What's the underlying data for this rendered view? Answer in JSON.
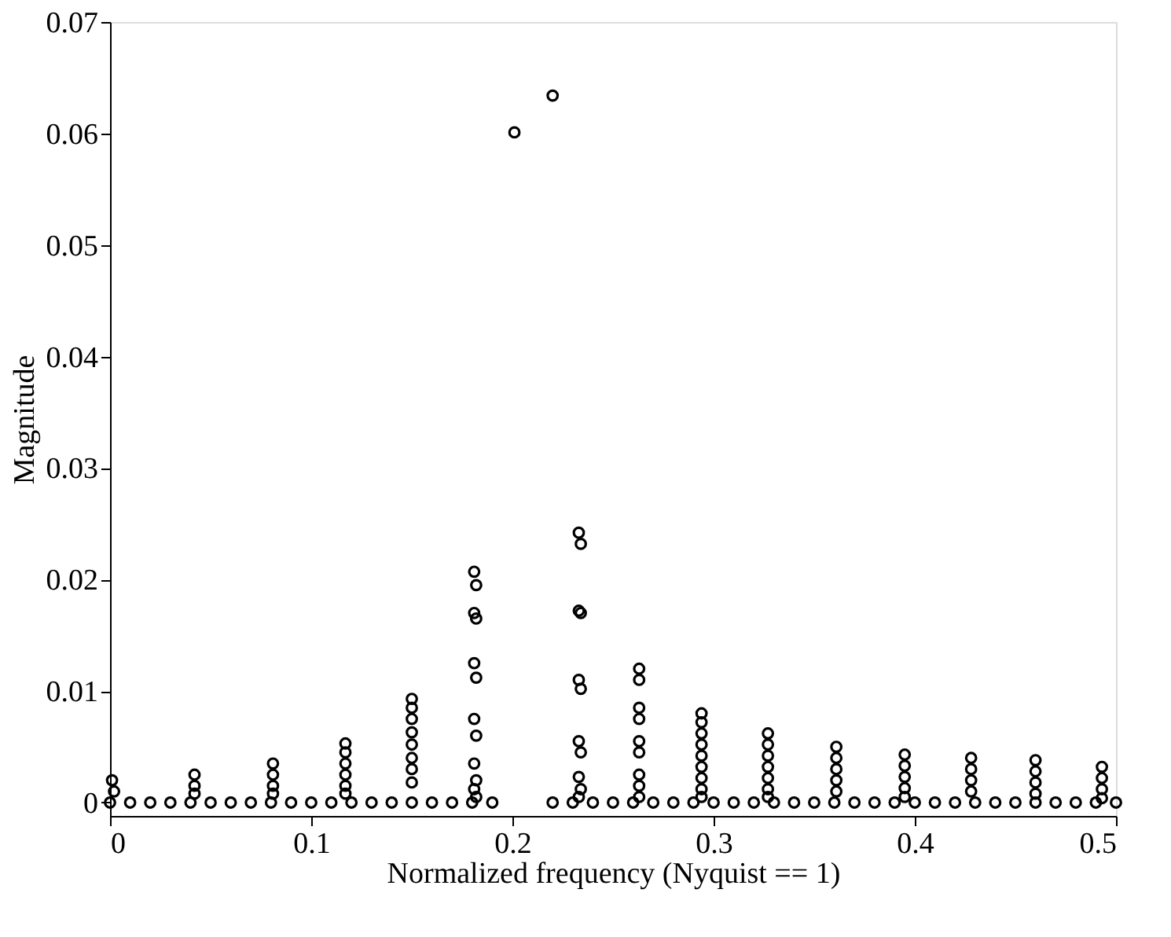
{
  "chart_data": {
    "type": "scatter",
    "xlabel": "Normalized frequency (Nyquist == 1)",
    "ylabel": "Magnitude",
    "xlim": [
      0,
      0.5
    ],
    "xticks": [
      0,
      0.1,
      0.2,
      0.3,
      0.4,
      0.5
    ],
    "ylim": [
      -0.0012,
      0.07
    ],
    "yticks": [
      0,
      0.01,
      0.02,
      0.03,
      0.04,
      0.05,
      0.06,
      0.07
    ],
    "grid": false,
    "legend": false,
    "marker": "circle",
    "series": [
      {
        "color": "#000000",
        "x": [
          0,
          0.01,
          0.02,
          0.03,
          0.04,
          0.05,
          0.06,
          0.07,
          0.08,
          0.09,
          0.1,
          0.11,
          0.12,
          0.13,
          0.14,
          0.15,
          0.16,
          0.17,
          0.18,
          0.19,
          0.22,
          0.23,
          0.24,
          0.25,
          0.26,
          0.27,
          0.28,
          0.29,
          0.3,
          0.31,
          0.32,
          0.33,
          0.34,
          0.35,
          0.36,
          0.37,
          0.38,
          0.39,
          0.4,
          0.41,
          0.42,
          0.43,
          0.44,
          0.45,
          0.46,
          0.47,
          0.48,
          0.49,
          0.5
        ],
        "values": [
          0,
          0,
          0,
          0,
          0,
          0,
          0,
          0,
          0,
          0,
          0,
          0,
          0,
          0,
          0,
          0,
          0,
          0,
          0,
          0,
          0,
          0,
          0,
          0,
          0,
          0,
          0,
          0,
          0,
          0,
          0,
          0,
          0,
          0,
          0,
          0,
          0,
          0,
          0,
          0,
          0,
          0,
          0,
          0,
          0,
          0,
          0,
          0,
          0
        ]
      },
      {
        "color": "#000000",
        "x": [
          0.001,
          0.002,
          0.042,
          0.042,
          0.042,
          0.081,
          0.081,
          0.081,
          0.081
        ],
        "values": [
          0.002,
          0.001,
          0.0025,
          0.0015,
          0.0008,
          0.0035,
          0.0025,
          0.0015,
          0.0008
        ]
      },
      {
        "color": "#000000",
        "x": [
          0.117,
          0.117,
          0.117,
          0.117,
          0.117,
          0.117,
          0.15,
          0.15,
          0.15,
          0.15,
          0.15,
          0.15,
          0.15,
          0.15
        ],
        "values": [
          0.0053,
          0.0045,
          0.0035,
          0.0025,
          0.0015,
          0.0008,
          0.0093,
          0.0085,
          0.0075,
          0.0063,
          0.0052,
          0.004,
          0.003,
          0.0018
        ]
      },
      {
        "color": "#000000",
        "x": [
          0.181,
          0.182,
          0.181,
          0.182,
          0.181,
          0.182,
          0.181,
          0.182,
          0.181,
          0.182,
          0.181,
          0.182
        ],
        "values": [
          0.0207,
          0.0195,
          0.017,
          0.0165,
          0.0125,
          0.0112,
          0.0075,
          0.006,
          0.0035,
          0.002,
          0.0012,
          0.0005
        ]
      },
      {
        "color": "#000000",
        "x": [
          0.201,
          0.22
        ],
        "values": [
          0.0601,
          0.0634
        ]
      },
      {
        "color": "#000000",
        "x": [
          0.233,
          0.234,
          0.233,
          0.234,
          0.233,
          0.234,
          0.233,
          0.234,
          0.233,
          0.234,
          0.233
        ],
        "values": [
          0.0242,
          0.0232,
          0.0172,
          0.017,
          0.011,
          0.0102,
          0.0055,
          0.0045,
          0.0023,
          0.0012,
          0.0005
        ]
      },
      {
        "color": "#000000",
        "x": [
          0.263,
          0.263,
          0.263,
          0.263,
          0.263,
          0.263,
          0.263,
          0.263,
          0.263
        ],
        "values": [
          0.012,
          0.011,
          0.0085,
          0.0075,
          0.0055,
          0.0045,
          0.0025,
          0.0015,
          0.0005
        ]
      },
      {
        "color": "#000000",
        "x": [
          0.294,
          0.294,
          0.294,
          0.294,
          0.294,
          0.294,
          0.294,
          0.294,
          0.294,
          0.327,
          0.327,
          0.327,
          0.327,
          0.327,
          0.327,
          0.327
        ],
        "values": [
          0.008,
          0.0072,
          0.0062,
          0.0052,
          0.0042,
          0.0032,
          0.0022,
          0.0012,
          0.0005,
          0.0062,
          0.0052,
          0.0042,
          0.0032,
          0.0022,
          0.0012,
          0.0005
        ]
      },
      {
        "color": "#000000",
        "x": [
          0.361,
          0.361,
          0.361,
          0.361,
          0.361,
          0.395,
          0.395,
          0.395,
          0.395,
          0.395,
          0.428,
          0.428,
          0.428,
          0.428,
          0.46,
          0.46,
          0.46,
          0.46,
          0.493,
          0.493,
          0.493,
          0.493
        ],
        "values": [
          0.005,
          0.004,
          0.003,
          0.002,
          0.001,
          0.0043,
          0.0033,
          0.0023,
          0.0013,
          0.0005,
          0.004,
          0.003,
          0.002,
          0.001,
          0.0038,
          0.0028,
          0.0018,
          0.0008,
          0.0032,
          0.0022,
          0.0012,
          0.0004
        ]
      }
    ]
  }
}
